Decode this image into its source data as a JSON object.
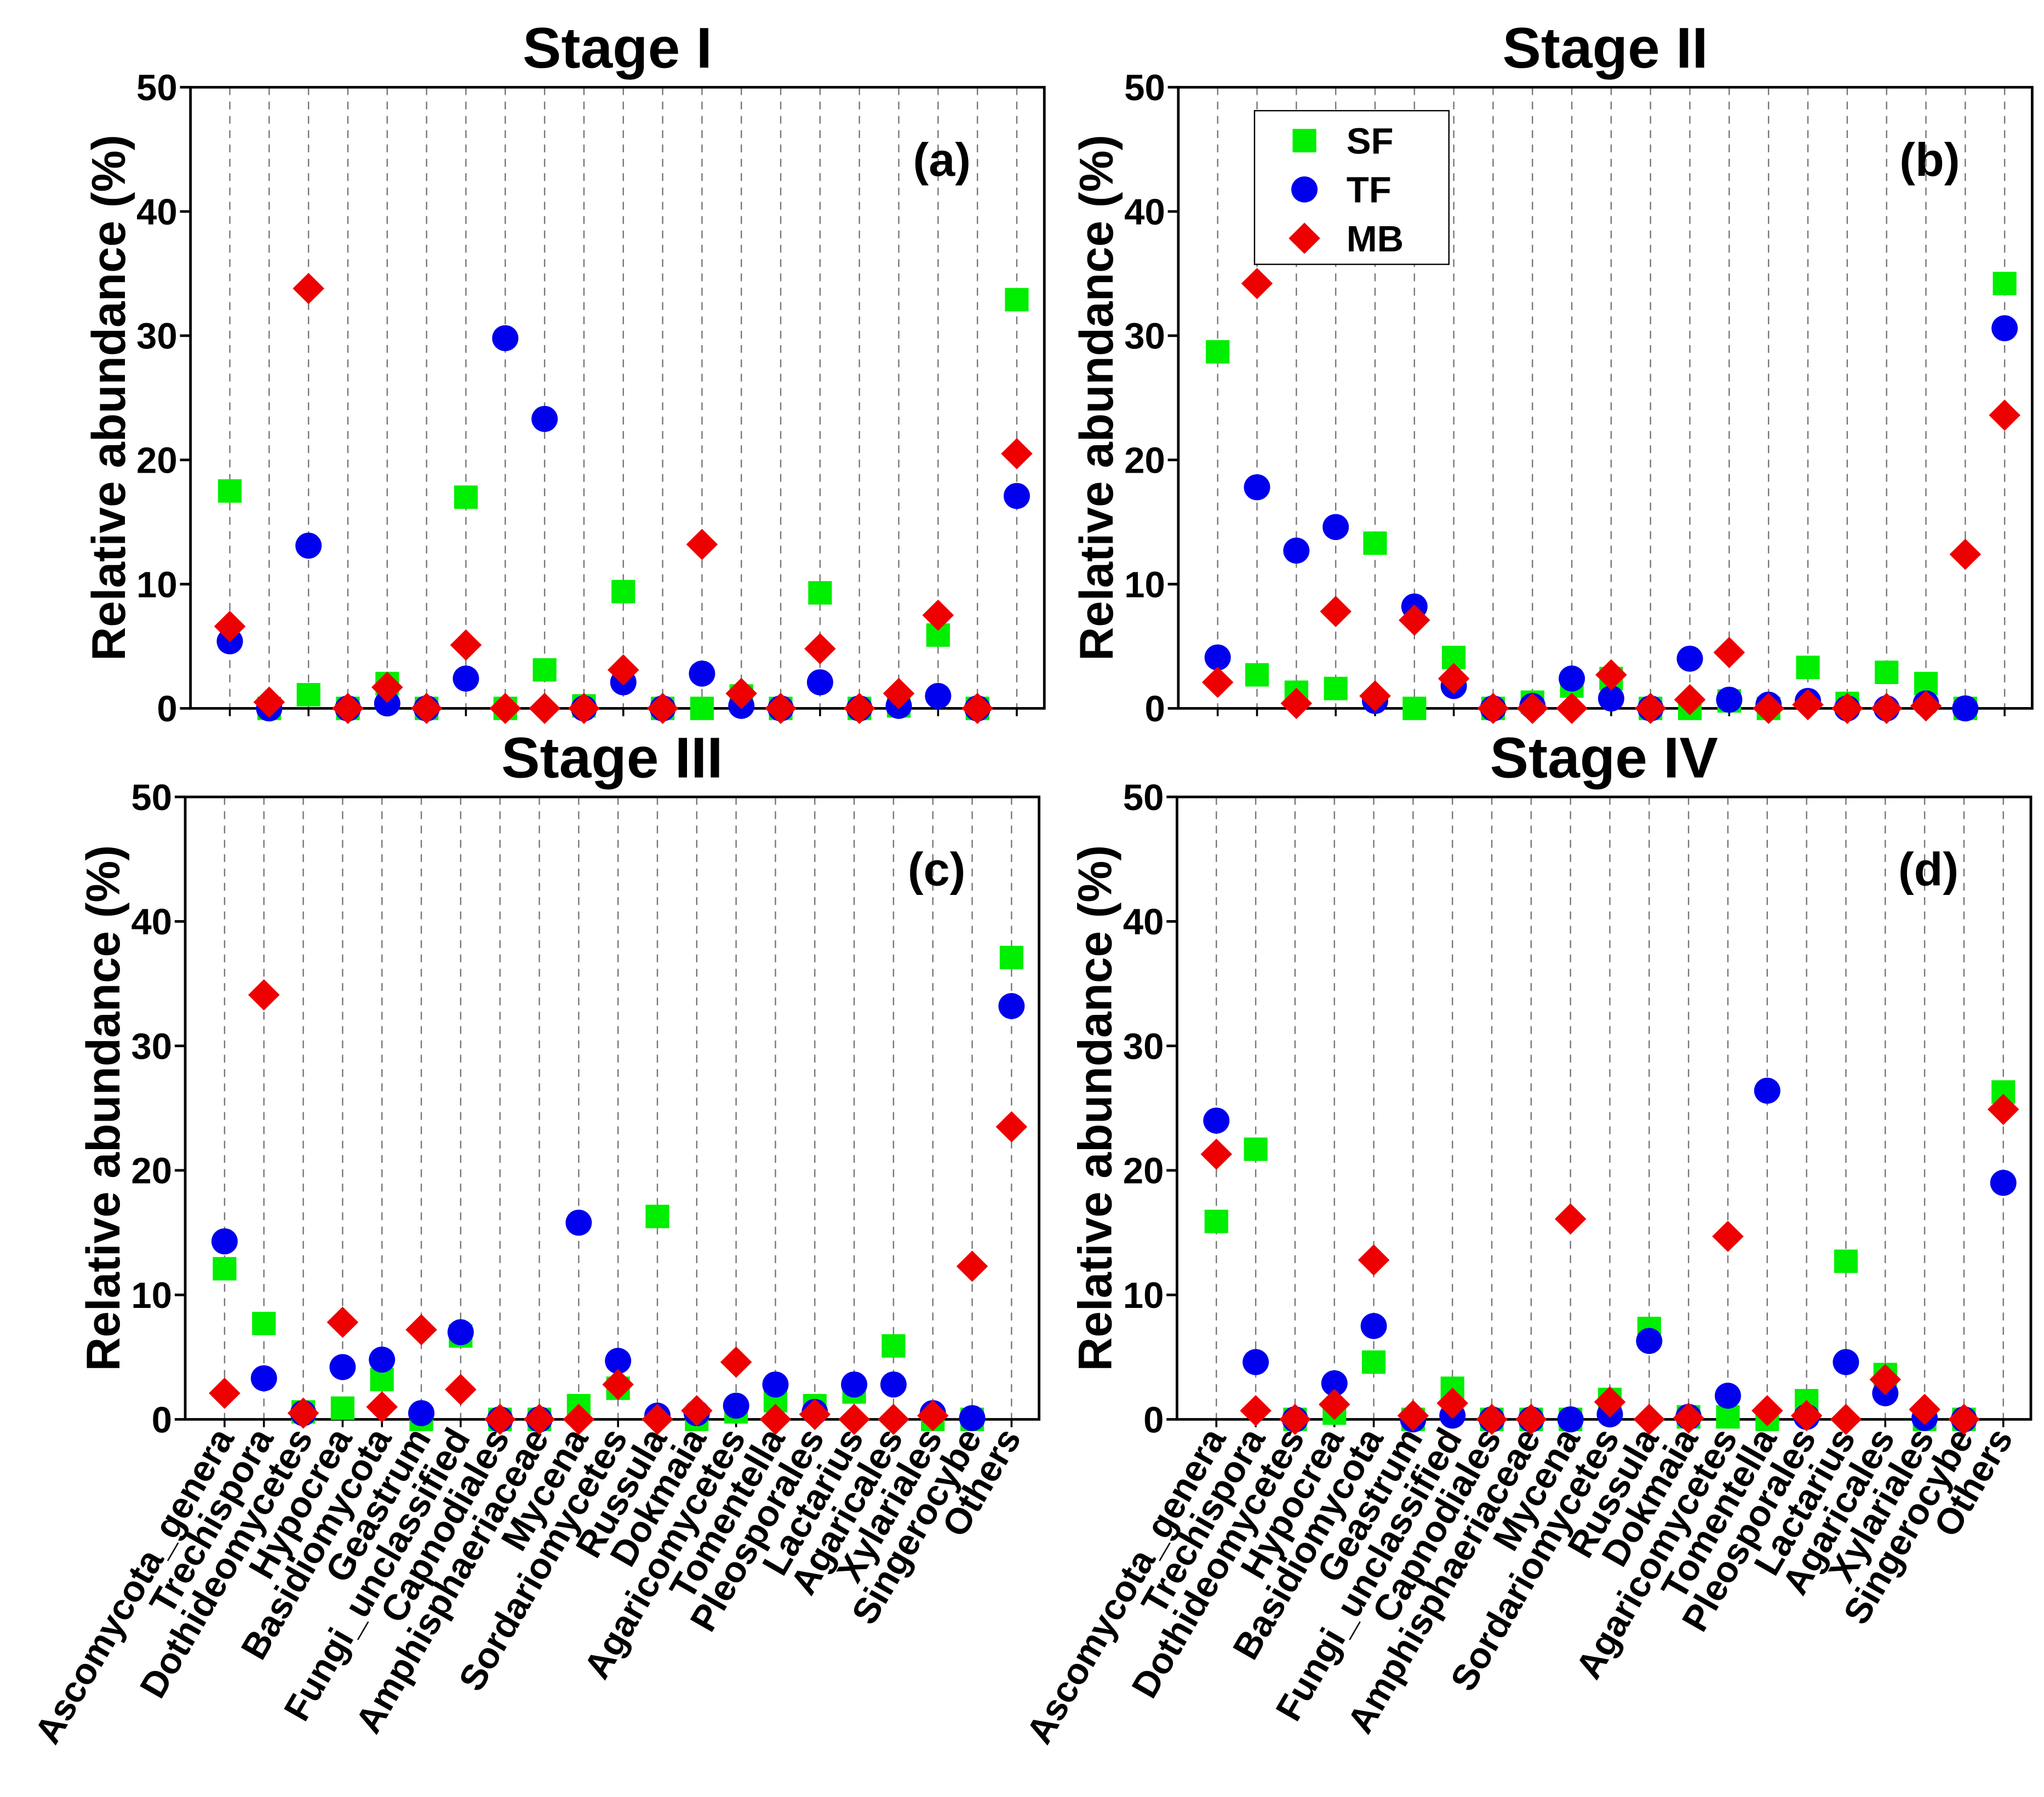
{
  "chart_data": [
    {
      "type": "scatter",
      "title": "Stage I",
      "ylabel": "Relative abundance (%)",
      "annotation": "(a)",
      "ylim": [
        0,
        50
      ],
      "yticks": [
        0,
        10,
        20,
        30,
        40,
        50
      ],
      "grid": true,
      "series": [
        {
          "color": "#00ee00",
          "marker": "square",
          "values": [
            17.5,
            0,
            1.1,
            0,
            2.0,
            0,
            17.0,
            0,
            3.1,
            0.2,
            9.4,
            0,
            0,
            1.0,
            0,
            9.3,
            0,
            0.2,
            5.9,
            0,
            32.9
          ]
        },
        {
          "color": "#0000ee",
          "marker": "circle",
          "values": [
            5.4,
            0,
            13.1,
            0,
            0.4,
            0,
            2.4,
            29.8,
            23.3,
            0,
            2.1,
            0,
            2.8,
            0.2,
            0,
            2.1,
            0,
            0.2,
            1.0,
            0,
            17.1
          ]
        },
        {
          "color": "#ee0000",
          "marker": "diamond",
          "values": [
            6.6,
            0.5,
            33.8,
            0,
            1.7,
            0,
            5.1,
            0,
            0,
            0,
            3.1,
            0,
            13.2,
            1.2,
            0,
            4.8,
            0,
            1.2,
            7.5,
            0,
            20.5
          ]
        }
      ]
    },
    {
      "type": "scatter",
      "title": "Stage II",
      "ylabel": "Relative abundance (%)",
      "annotation": "(b)",
      "ylim": [
        0,
        50
      ],
      "yticks": [
        0,
        10,
        20,
        30,
        40,
        50
      ],
      "grid": true,
      "legend": "upper left",
      "series": [
        {
          "name": "SF",
          "color": "#00ee00",
          "marker": "square",
          "values": [
            28.7,
            2.7,
            1.3,
            1.6,
            13.3,
            0,
            4.1,
            0,
            0.5,
            1.8,
            2.4,
            0,
            0,
            0.6,
            0,
            3.3,
            0.4,
            2.9,
            2.0,
            0,
            34.2
          ]
        },
        {
          "name": "TF",
          "color": "#0000ee",
          "marker": "circle",
          "values": [
            4.1,
            17.8,
            12.7,
            14.6,
            0.6,
            8.2,
            1.8,
            0,
            0.2,
            2.4,
            0.8,
            0,
            4.0,
            0.7,
            0.3,
            0.6,
            0,
            0,
            0.4,
            0,
            30.6
          ]
        },
        {
          "name": "MB",
          "color": "#ee0000",
          "marker": "diamond",
          "values": [
            2.1,
            34.2,
            0.4,
            7.8,
            1.0,
            7.1,
            2.4,
            0,
            0,
            0,
            2.7,
            0,
            0.7,
            4.5,
            0,
            0.3,
            0,
            0,
            0.2,
            12.4,
            23.6
          ]
        }
      ]
    },
    {
      "type": "scatter",
      "title": "Stage III",
      "ylabel": "Relative abundance (%)",
      "annotation": "(c)",
      "categories": [
        "Ascomycota_genera",
        "Trechispora",
        "Dothideomycetes",
        "Hypocrea",
        "Basidiomycota",
        "Geastrum",
        "Fungi_unclassified",
        "Capnodiales",
        "Amphisphaeriaceae",
        "Mycena",
        "Sordariomycetes",
        "Russula",
        "Dokmaia",
        "Agaricomycetes",
        "Tomentella",
        "Pleosporales",
        "Lactarius",
        "Agaricales",
        "Xylariales",
        "Singerocybe",
        "Others"
      ],
      "ylim": [
        0,
        50
      ],
      "yticks": [
        0,
        10,
        20,
        30,
        40,
        50
      ],
      "grid": true,
      "series": [
        {
          "color": "#00ee00",
          "marker": "square",
          "values": [
            12.1,
            7.7,
            0.6,
            0.9,
            3.2,
            0,
            6.7,
            0,
            0,
            1.1,
            2.5,
            16.3,
            0,
            0.6,
            1.5,
            1.1,
            2.2,
            5.9,
            0,
            0,
            37.1
          ]
        },
        {
          "color": "#0000ee",
          "marker": "circle",
          "values": [
            14.3,
            3.3,
            0.5,
            4.2,
            4.8,
            0.5,
            7.0,
            0,
            0,
            15.8,
            4.7,
            0.3,
            0.5,
            1.1,
            2.8,
            0.6,
            2.8,
            2.8,
            0.5,
            0.1,
            33.2
          ]
        },
        {
          "color": "#ee0000",
          "marker": "diamond",
          "values": [
            2.1,
            34.1,
            0.5,
            7.8,
            1.0,
            7.2,
            2.4,
            0,
            0,
            0,
            2.8,
            0,
            0.7,
            4.6,
            0,
            0.4,
            0,
            0,
            0.3,
            12.3,
            23.5
          ]
        }
      ]
    },
    {
      "type": "scatter",
      "title": "Stage IV",
      "ylabel": "Relative abundance (%)",
      "annotation": "(d)",
      "categories": [
        "Ascomycota_genera",
        "Trechispora",
        "Dothideomycetes",
        "Hypocrea",
        "Basidiomycota",
        "Geastrum",
        "Fungi_unclassified",
        "Capnodiales",
        "Amphisphaeriaceae",
        "Mycena",
        "Sordariomycetes",
        "Russula",
        "Dokmaia",
        "Agaricomycetes",
        "Tomentella",
        "Pleosporales",
        "Lactarius",
        "Agaricales",
        "Xylariales",
        "Singerocybe",
        "Others"
      ],
      "ylim": [
        0,
        50
      ],
      "yticks": [
        0,
        10,
        20,
        30,
        40,
        50
      ],
      "grid": true,
      "series": [
        {
          "color": "#00ee00",
          "marker": "square",
          "values": [
            15.9,
            21.7,
            0,
            0.5,
            4.6,
            0,
            2.5,
            0,
            0,
            0,
            1.6,
            7.3,
            0.2,
            0.2,
            0,
            1.5,
            12.7,
            3.6,
            0,
            0,
            26.3
          ]
        },
        {
          "color": "#0000ee",
          "marker": "circle",
          "values": [
            24.0,
            4.6,
            0,
            2.9,
            7.5,
            0,
            0.3,
            0,
            0,
            0,
            0.4,
            6.3,
            0.2,
            1.9,
            26.4,
            0.2,
            4.6,
            2.1,
            0.1,
            0,
            19.0
          ]
        },
        {
          "color": "#ee0000",
          "marker": "diamond",
          "values": [
            21.3,
            0.7,
            0,
            1.2,
            12.8,
            0.3,
            1.3,
            0,
            0,
            16.1,
            1.4,
            0,
            0.1,
            14.7,
            0.7,
            0.3,
            0,
            3.2,
            0.8,
            0,
            24.9
          ]
        }
      ]
    }
  ]
}
